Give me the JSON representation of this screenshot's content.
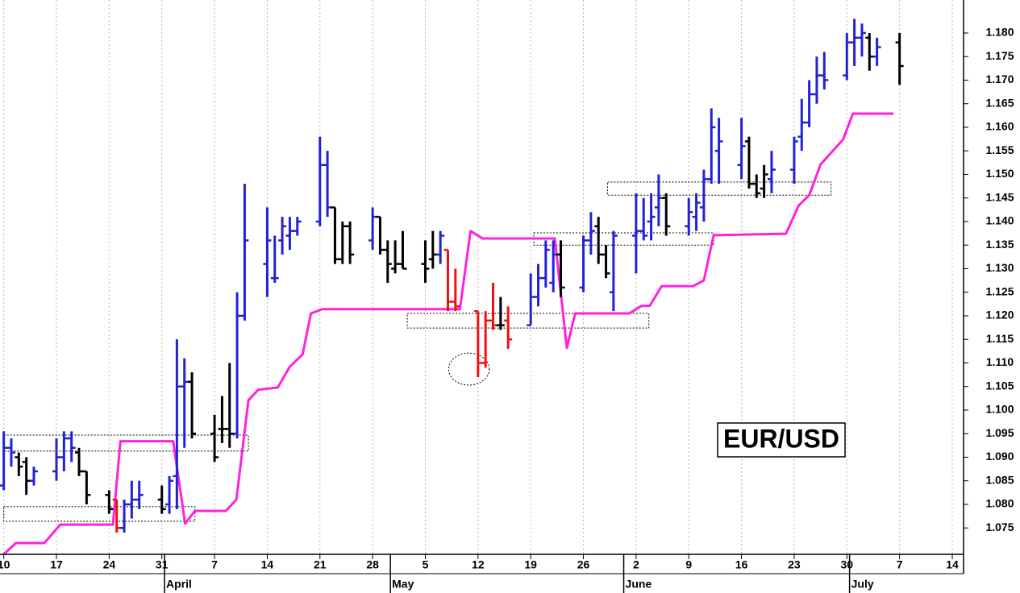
{
  "chart_data": {
    "type": "ohlc",
    "annotation": "EUR/USD",
    "xlim": [
      -0.5,
      127.5
    ],
    "ylim": [
      1.0694,
      1.187
    ],
    "xticks": [
      {
        "value": 0,
        "label": "10"
      },
      {
        "value": 7,
        "label": "17"
      },
      {
        "value": 14,
        "label": "24"
      },
      {
        "value": 21,
        "label": "31"
      },
      {
        "value": 28,
        "label": "7"
      },
      {
        "value": 35,
        "label": "14"
      },
      {
        "value": 42,
        "label": "21"
      },
      {
        "value": 49,
        "label": "28"
      },
      {
        "value": 56,
        "label": "5"
      },
      {
        "value": 63,
        "label": "12"
      },
      {
        "value": 70,
        "label": "19"
      },
      {
        "value": 77,
        "label": "26"
      },
      {
        "value": 84,
        "label": "2"
      },
      {
        "value": 91,
        "label": "9"
      },
      {
        "value": 98,
        "label": "16"
      },
      {
        "value": 105,
        "label": "23"
      },
      {
        "value": 112,
        "label": "30"
      },
      {
        "value": 119,
        "label": "7"
      },
      {
        "value": 126,
        "label": "14"
      }
    ],
    "months": [
      {
        "value": 22,
        "label": "April"
      },
      {
        "value": 52,
        "label": "May"
      },
      {
        "value": 83,
        "label": "June"
      },
      {
        "value": 113,
        "label": "July"
      }
    ],
    "yticks": [
      1.075,
      {
        "value": 1.08,
        "label": "1.080"
      },
      1.085,
      {
        "value": 1.09,
        "label": "1.090"
      },
      1.095,
      {
        "value": 1.1,
        "label": "1.100"
      },
      1.105,
      {
        "value": 1.11,
        "label": "1.110"
      },
      1.115,
      {
        "value": 1.12,
        "label": "1.120"
      },
      1.125,
      {
        "value": 1.13,
        "label": "1.130"
      },
      1.135,
      {
        "value": 1.14,
        "label": "1.140"
      },
      1.145,
      {
        "value": 1.15,
        "label": "1.150"
      },
      1.155,
      {
        "value": 1.16,
        "label": "1.160"
      },
      1.165,
      {
        "value": 1.17,
        "label": "1.170"
      },
      1.175,
      {
        "value": 1.18,
        "label": "1.180"
      }
    ],
    "grid": true,
    "bars": {
      "x": [
        0,
        1,
        2,
        3,
        4,
        7,
        8,
        9,
        10,
        11,
        14,
        15,
        16,
        17,
        18,
        21,
        22,
        23,
        24,
        25,
        28,
        29,
        30,
        31,
        32,
        35,
        36,
        37,
        38,
        39,
        42,
        43,
        44,
        45,
        46,
        49,
        50,
        51,
        52,
        53,
        56,
        57,
        58,
        59,
        60,
        63,
        64,
        65,
        66,
        67,
        70,
        71,
        72,
        73,
        74,
        77,
        78,
        79,
        80,
        81,
        84,
        85,
        86,
        87,
        88,
        91,
        92,
        93,
        94,
        95,
        98,
        99,
        100,
        101,
        102,
        105,
        106,
        107,
        108,
        109,
        112,
        113,
        114,
        115,
        116,
        119
      ],
      "open": [
        1.084,
        1.092,
        1.09,
        1.089,
        1.085,
        1.087,
        1.09,
        1.094,
        1.091,
        1.087,
        1.082,
        1.081,
        1.075,
        1.08,
        1.081,
        1.081,
        1.08,
        1.086,
        1.105,
        1.106,
        1.095,
        1.096,
        1.096,
        1.095,
        1.12,
        1.131,
        1.128,
        1.136,
        1.137,
        1.138,
        1.14,
        1.152,
        1.143,
        1.132,
        1.139,
        1.136,
        1.141,
        1.134,
        1.13,
        1.131,
        1.131,
        1.132,
        1.133,
        1.134,
        1.123,
        1.121,
        1.11,
        1.119,
        1.118,
        1.119,
        1.118,
        1.124,
        1.128,
        1.127,
        1.133,
        1.126,
        1.136,
        1.139,
        1.133,
        1.125,
        1.137,
        1.138,
        1.14,
        1.143,
        1.145,
        1.139,
        1.141,
        1.143,
        1.149,
        1.155,
        1.152,
        1.157,
        1.148,
        1.147,
        1.149,
        1.151,
        1.158,
        1.161,
        1.167,
        1.171,
        1.171,
        1.178,
        1.179,
        1.179,
        1.175,
        1.178
      ],
      "high": [
        1.0955,
        1.094,
        1.091,
        1.09,
        1.088,
        1.094,
        1.0955,
        1.0955,
        1.092,
        1.087,
        1.083,
        1.081,
        1.081,
        1.085,
        1.085,
        1.084,
        1.086,
        1.115,
        1.111,
        1.108,
        1.099,
        1.103,
        1.11,
        1.125,
        1.148,
        1.143,
        1.137,
        1.141,
        1.141,
        1.141,
        1.158,
        1.155,
        1.143,
        1.14,
        1.14,
        1.143,
        1.141,
        1.136,
        1.136,
        1.138,
        1.136,
        1.138,
        1.138,
        1.134,
        1.13,
        1.121,
        1.121,
        1.127,
        1.124,
        1.122,
        1.129,
        1.131,
        1.136,
        1.136,
        1.136,
        1.137,
        1.142,
        1.141,
        1.135,
        1.138,
        1.146,
        1.145,
        1.146,
        1.15,
        1.146,
        1.145,
        1.146,
        1.151,
        1.164,
        1.162,
        1.162,
        1.158,
        1.15,
        1.152,
        1.155,
        1.158,
        1.166,
        1.17,
        1.175,
        1.176,
        1.18,
        1.183,
        1.182,
        1.18,
        1.179,
        1.18
      ],
      "low": [
        1.083,
        1.088,
        1.086,
        1.082,
        1.084,
        1.085,
        1.087,
        1.089,
        1.086,
        1.08,
        1.078,
        1.074,
        1.074,
        1.077,
        1.079,
        1.078,
        1.078,
        1.079,
        1.092,
        1.094,
        1.089,
        1.093,
        1.092,
        1.094,
        1.119,
        1.124,
        1.127,
        1.133,
        1.134,
        1.137,
        1.139,
        1.141,
        1.131,
        1.131,
        1.131,
        1.134,
        1.133,
        1.127,
        1.129,
        1.13,
        1.127,
        1.13,
        1.131,
        1.121,
        1.121,
        1.107,
        1.109,
        1.117,
        1.117,
        1.113,
        1.118,
        1.122,
        1.126,
        1.125,
        1.124,
        1.125,
        1.133,
        1.131,
        1.128,
        1.121,
        1.129,
        1.136,
        1.136,
        1.139,
        1.137,
        1.137,
        1.138,
        1.14,
        1.148,
        1.148,
        1.149,
        1.147,
        1.145,
        1.145,
        1.146,
        1.148,
        1.155,
        1.16,
        1.165,
        1.168,
        1.17,
        1.173,
        1.175,
        1.172,
        1.173,
        1.169
      ],
      "close": [
        1.092,
        1.091,
        1.088,
        1.085,
        1.087,
        1.09,
        1.094,
        1.092,
        1.087,
        1.082,
        1.079,
        1.075,
        1.08,
        1.081,
        1.082,
        1.079,
        1.085,
        1.105,
        1.106,
        1.095,
        1.09,
        1.096,
        1.095,
        1.12,
        1.136,
        1.136,
        1.128,
        1.139,
        1.138,
        1.14,
        1.152,
        1.143,
        1.132,
        1.139,
        1.133,
        1.141,
        1.134,
        1.131,
        1.131,
        1.13,
        1.13,
        1.133,
        1.137,
        1.123,
        1.122,
        1.11,
        1.119,
        1.118,
        1.118,
        1.115,
        1.124,
        1.128,
        1.134,
        1.133,
        1.126,
        1.136,
        1.138,
        1.133,
        1.129,
        1.137,
        1.138,
        1.137,
        1.141,
        1.145,
        1.139,
        1.142,
        1.144,
        1.149,
        1.16,
        1.157,
        1.156,
        1.148,
        1.146,
        1.15,
        1.151,
        1.157,
        1.161,
        1.167,
        1.171,
        1.17,
        1.178,
        1.179,
        1.18,
        1.175,
        1.177,
        1.173
      ],
      "colors": [
        "#2222d4",
        "#2222d4",
        "#000000",
        "#000000",
        "#2222d4",
        "#2222d4",
        "#2222d4",
        "#2222d4",
        "#000000",
        "#000000",
        "#000000",
        "#ee1111",
        "#2222d4",
        "#2222d4",
        "#2222d4",
        "#000000",
        "#2222d4",
        "#2222d4",
        "#2222d4",
        "#000000",
        "#000000",
        "#000000",
        "#000000",
        "#2222d4",
        "#2222d4",
        "#2222d4",
        "#2222d4",
        "#2222d4",
        "#2222d4",
        "#2222d4",
        "#2222d4",
        "#2222d4",
        "#000000",
        "#000000",
        "#000000",
        "#2222d4",
        "#000000",
        "#000000",
        "#000000",
        "#000000",
        "#000000",
        "#000000",
        "#2222d4",
        "#ee1111",
        "#ee1111",
        "#ee1111",
        "#ee1111",
        "#ee1111",
        "#000000",
        "#ee1111",
        "#2222d4",
        "#2222d4",
        "#2222d4",
        "#2222d4",
        "#000000",
        "#2222d4",
        "#2222d4",
        "#000000",
        "#000000",
        "#2222d4",
        "#2222d4",
        "#2222d4",
        "#2222d4",
        "#2222d4",
        "#000000",
        "#2222d4",
        "#2222d4",
        "#2222d4",
        "#2222d4",
        "#2222d4",
        "#2222d4",
        "#000000",
        "#000000",
        "#000000",
        "#2222d4",
        "#2222d4",
        "#2222d4",
        "#2222d4",
        "#2222d4",
        "#2222d4",
        "#2222d4",
        "#2222d4",
        "#2222d4",
        "#000000",
        "#2222d4",
        "#000000"
      ]
    },
    "line": {
      "color": "#ff22dd",
      "x": [
        0,
        1.6,
        5.4,
        7.5,
        14.5,
        15.5,
        22.5,
        24.1,
        25.4,
        29.5,
        30.9,
        32.5,
        33.8,
        36.4,
        38.0,
        39.7,
        40.8,
        42.3,
        60.6,
        62.0,
        63.6,
        73.2,
        74.8,
        75.9,
        83.1,
        84.7,
        85.8,
        87.4,
        91.6,
        93.0,
        94.3,
        103.9,
        105.6,
        107.0,
        108.5,
        111.5,
        112.8,
        118.2
      ],
      "values": [
        1.0694,
        1.0718,
        1.0718,
        1.0757,
        1.0757,
        1.0934,
        1.0934,
        1.0759,
        1.0786,
        1.0786,
        1.081,
        1.1021,
        1.1043,
        1.1048,
        1.1092,
        1.1118,
        1.1205,
        1.1214,
        1.1214,
        1.138,
        1.1364,
        1.1364,
        1.1132,
        1.1205,
        1.1205,
        1.1221,
        1.1221,
        1.1263,
        1.1263,
        1.1275,
        1.1371,
        1.1374,
        1.1434,
        1.1456,
        1.1521,
        1.1574,
        1.1629,
        1.1629
      ]
    },
    "boxes": [
      {
        "x": [
          0,
          32.5
        ],
        "y": [
          1.0913,
          1.0947
        ]
      },
      {
        "x": [
          0,
          25.4
        ],
        "y": [
          1.0764,
          1.0795
        ]
      },
      {
        "x": [
          53.6,
          85.7
        ],
        "y": [
          1.1174,
          1.1205
        ]
      },
      {
        "x": [
          70.4,
          94.3
        ],
        "y": [
          1.135,
          1.1376
        ]
      },
      {
        "x": [
          80.2,
          109.9
        ],
        "y": [
          1.1456,
          1.1484
        ]
      }
    ],
    "ellipse": {
      "x": [
        59.1,
        64.5
      ],
      "y": [
        1.1053,
        1.1121
      ]
    }
  }
}
